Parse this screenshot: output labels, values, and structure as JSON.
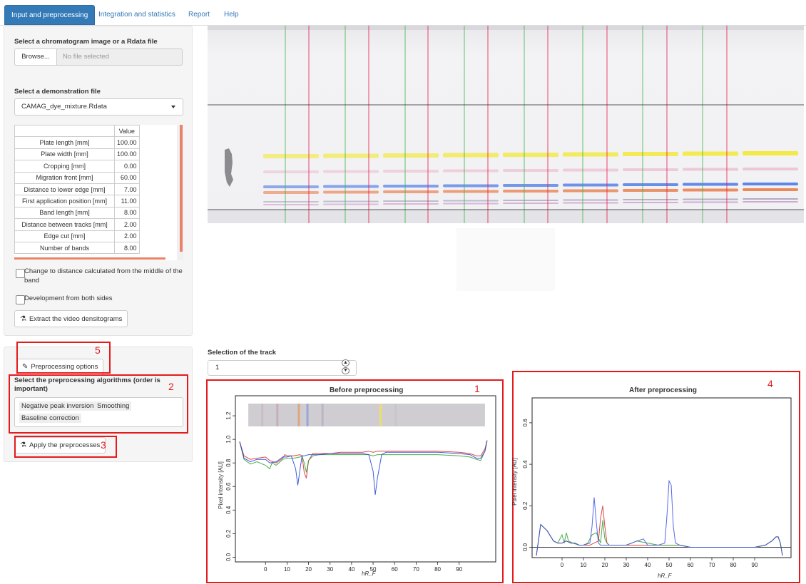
{
  "nav": {
    "tabs": [
      {
        "label": "Input and preprocessing",
        "active": true
      },
      {
        "label": "Integration and statistics"
      },
      {
        "label": "Report"
      },
      {
        "label": "Help"
      }
    ]
  },
  "input_panel": {
    "file_label": "Select a chromatogram image or a Rdata file",
    "browse_label": "Browse...",
    "file_placeholder": "No file selected",
    "demo_label": "Select a demonstration file",
    "demo_value": "CAMAG_dye_mixture.Rdata",
    "table": {
      "header": "Value",
      "rows": [
        {
          "name": "Plate length [mm]",
          "value": "100.00"
        },
        {
          "name": "Plate width [mm]",
          "value": "100.00"
        },
        {
          "name": "Cropping [mm]",
          "value": "0.00"
        },
        {
          "name": "Migration front [mm]",
          "value": "60.00"
        },
        {
          "name": "Distance to lower edge [mm]",
          "value": "7.00"
        },
        {
          "name": "First application position [mm]",
          "value": "11.00"
        },
        {
          "name": "Band length [mm]",
          "value": "8.00"
        },
        {
          "name": "Distance between tracks [mm]",
          "value": "2.00"
        },
        {
          "name": "Edge cut [mm]",
          "value": "2.00"
        },
        {
          "name": "Number of bands",
          "value": "8.00"
        }
      ]
    },
    "checkbox_middle": "Change to distance calculated from the middle of the band",
    "checkbox_both_sides": "Development from both sides",
    "extract_button": "Extract the video densitograms"
  },
  "preprocess_panel": {
    "options_button": "Preprocessing options",
    "algo_label": "Select the preprocessing algorithms (order is important)",
    "algorithms": [
      "Negative peak inversion",
      "Smoothing",
      "Baseline correction"
    ],
    "apply_button": "Apply the preprocesses"
  },
  "annotations": [
    "1",
    "2",
    "3",
    "4",
    "5"
  ],
  "track": {
    "label": "Selection of the track",
    "value": "1"
  },
  "chart_data": [
    {
      "type": "line",
      "title": "Before preprocessing",
      "xlabel": "hR_F",
      "ylabel": "Pixel intensity [AU]",
      "x_ticks": [
        "0",
        "10",
        "20",
        "30",
        "40",
        "50",
        "60",
        "70",
        "80",
        "90"
      ],
      "y_ticks": [
        "0.0",
        "0.2",
        "0.4",
        "0.6",
        "0.8",
        "1.0",
        "1.2"
      ],
      "xlim": [
        -14,
        107
      ],
      "ylim": [
        -0.04,
        1.37
      ],
      "series": [
        {
          "color": "#d62728",
          "x": [
            -12,
            -10,
            -7,
            -4,
            0,
            2,
            5,
            8,
            9,
            10,
            13,
            16,
            17,
            18,
            19,
            20,
            22,
            25,
            30,
            35,
            40,
            45,
            48,
            50,
            52,
            55,
            60,
            70,
            80,
            90,
            95,
            98,
            100,
            102,
            103
          ],
          "y": [
            0.98,
            0.86,
            0.83,
            0.84,
            0.85,
            0.82,
            0.8,
            0.84,
            0.87,
            0.86,
            0.86,
            0.87,
            0.86,
            0.72,
            0.67,
            0.82,
            0.88,
            0.88,
            0.88,
            0.89,
            0.89,
            0.89,
            0.9,
            0.89,
            0.9,
            0.9,
            0.9,
            0.9,
            0.9,
            0.89,
            0.88,
            0.86,
            0.86,
            0.92,
            0.99
          ]
        },
        {
          "color": "#2ca02c",
          "x": [
            -12,
            -10,
            -7,
            -4,
            0,
            2,
            3,
            5,
            8,
            10,
            13,
            16,
            17,
            18,
            19,
            20,
            22,
            25,
            30,
            35,
            40,
            45,
            48,
            50,
            52,
            55,
            60,
            70,
            80,
            90,
            95,
            98,
            100,
            102,
            103
          ],
          "y": [
            0.98,
            0.83,
            0.79,
            0.81,
            0.78,
            0.75,
            0.8,
            0.78,
            0.83,
            0.84,
            0.84,
            0.85,
            0.86,
            0.8,
            0.72,
            0.82,
            0.86,
            0.87,
            0.87,
            0.87,
            0.87,
            0.87,
            0.87,
            0.86,
            0.87,
            0.87,
            0.87,
            0.87,
            0.87,
            0.86,
            0.85,
            0.83,
            0.82,
            0.9,
            0.99
          ]
        },
        {
          "color": "#1f3fd6",
          "x": [
            -12,
            -10,
            -7,
            -4,
            0,
            2,
            5,
            8,
            10,
            12,
            14,
            15,
            16,
            17,
            18,
            20,
            22,
            25,
            30,
            35,
            40,
            45,
            48,
            50,
            51,
            52,
            54,
            56,
            60,
            70,
            80,
            90,
            95,
            98,
            100,
            102,
            103
          ],
          "y": [
            0.98,
            0.84,
            0.81,
            0.83,
            0.83,
            0.8,
            0.81,
            0.85,
            0.85,
            0.86,
            0.75,
            0.61,
            0.74,
            0.86,
            0.86,
            0.87,
            0.87,
            0.87,
            0.88,
            0.88,
            0.88,
            0.88,
            0.87,
            0.73,
            0.53,
            0.67,
            0.87,
            0.89,
            0.89,
            0.89,
            0.89,
            0.88,
            0.87,
            0.84,
            0.84,
            0.9,
            0.99
          ]
        }
      ]
    },
    {
      "type": "line",
      "title": "After preprocessing",
      "xlabel": "hR_F",
      "ylabel": "Pixel intensity [AU]",
      "x_ticks": [
        "0",
        "10",
        "20",
        "30",
        "40",
        "50",
        "60",
        "70",
        "80",
        "90"
      ],
      "y_ticks": [
        "0.0",
        "0.2",
        "0.4",
        "0.6"
      ],
      "xlim": [
        -14,
        107
      ],
      "ylim": [
        -0.05,
        0.72
      ],
      "series": [
        {
          "color": "#d62728",
          "x": [
            -12,
            -10,
            -7,
            -4,
            -2,
            0,
            2,
            4,
            6,
            8,
            10,
            13,
            15,
            17,
            18,
            19,
            20,
            21,
            22,
            25,
            30,
            35,
            40,
            45,
            50,
            55,
            60,
            70,
            80,
            90,
            95,
            98,
            100,
            101,
            102,
            103
          ],
          "y": [
            -0.04,
            0.11,
            0.08,
            0.03,
            0.02,
            0.02,
            0.03,
            0.02,
            0.02,
            0.01,
            0.01,
            0.01,
            0.02,
            0.03,
            0.14,
            0.2,
            0.1,
            0.02,
            0.01,
            0.01,
            0.01,
            0.01,
            0.01,
            0.01,
            0.01,
            0.01,
            0.0,
            0.0,
            0.0,
            0.0,
            0.01,
            0.03,
            0.05,
            0.05,
            0.02,
            -0.04
          ]
        },
        {
          "color": "#2ca02c",
          "x": [
            -12,
            -10,
            -7,
            -4,
            -2,
            0,
            1,
            2,
            3,
            5,
            8,
            10,
            12,
            14,
            16,
            18,
            19,
            20,
            21,
            22,
            25,
            30,
            35,
            40,
            45,
            50,
            55,
            60,
            70,
            80,
            90,
            95,
            98,
            100,
            101,
            102,
            103
          ],
          "y": [
            -0.04,
            0.11,
            0.08,
            0.03,
            0.02,
            0.06,
            0.02,
            0.07,
            0.03,
            0.02,
            0.01,
            0.01,
            0.02,
            0.06,
            0.07,
            0.02,
            0.13,
            0.04,
            0.02,
            0.01,
            0.01,
            0.01,
            0.03,
            0.02,
            0.01,
            0.01,
            0.01,
            0.0,
            0.0,
            0.0,
            0.0,
            0.01,
            0.03,
            0.05,
            0.05,
            0.02,
            -0.04
          ]
        },
        {
          "color": "#3b4fe0",
          "x": [
            -12,
            -10,
            -7,
            -4,
            -2,
            0,
            2,
            4,
            6,
            8,
            10,
            13,
            14,
            15,
            16,
            17,
            18,
            20,
            25,
            30,
            35,
            38,
            40,
            45,
            48,
            49,
            50,
            51,
            52,
            53,
            55,
            60,
            70,
            80,
            90,
            95,
            98,
            100,
            101,
            102,
            103
          ],
          "y": [
            -0.04,
            0.11,
            0.08,
            0.03,
            0.02,
            0.02,
            0.03,
            0.02,
            0.02,
            0.01,
            0.01,
            0.02,
            0.1,
            0.24,
            0.12,
            0.02,
            0.01,
            0.01,
            0.01,
            0.01,
            0.03,
            0.04,
            0.01,
            0.01,
            0.02,
            0.15,
            0.32,
            0.3,
            0.1,
            0.02,
            0.01,
            0.0,
            0.0,
            0.0,
            0.0,
            0.01,
            0.03,
            0.05,
            0.05,
            0.02,
            -0.04
          ]
        }
      ]
    }
  ]
}
